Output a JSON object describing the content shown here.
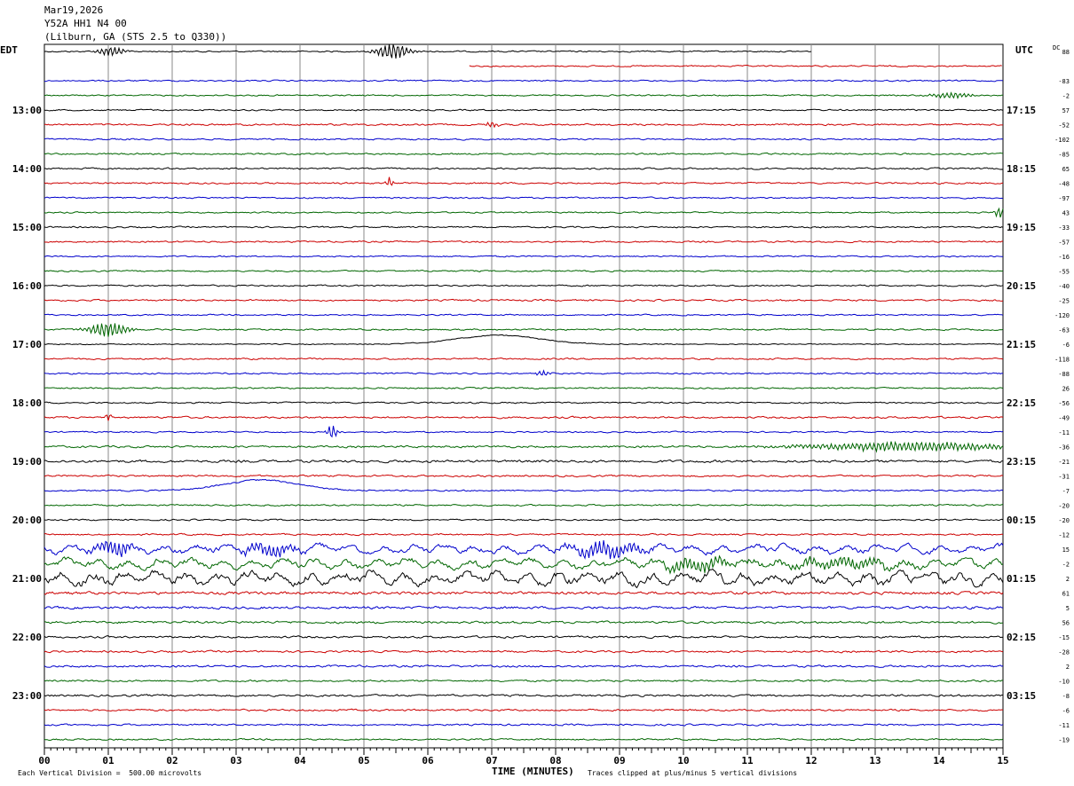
{
  "header": {
    "date": "Mar19,2026",
    "channel": "Y52A HH1 N4 00",
    "location": "(Lilburn, GA (STS 2.5 to Q330))"
  },
  "left_timezone": "EDT",
  "right_timezone": "UTC",
  "dc_label": "DC",
  "footer": {
    "scale": "Each Vertical Division =  500.00 microvolts",
    "xlabel": "TIME (MINUTES)",
    "clip_note": "Traces clipped at plus/minus 5 vertical divisions"
  },
  "colors": {
    "trace_cycle": [
      "#000000",
      "#cc0000",
      "#0000cc",
      "#006600"
    ],
    "grid": "#888888"
  },
  "chart_data": {
    "type": "line",
    "xlabel": "TIME (MINUTES)",
    "xlim": [
      0,
      15
    ],
    "x_ticks": [
      "00",
      "01",
      "02",
      "03",
      "04",
      "05",
      "06",
      "07",
      "08",
      "09",
      "10",
      "11",
      "12",
      "13",
      "14",
      "15"
    ],
    "left_hour_labels": [
      {
        "row": 4,
        "label": "13:00"
      },
      {
        "row": 8,
        "label": "14:00"
      },
      {
        "row": 12,
        "label": "15:00"
      },
      {
        "row": 16,
        "label": "16:00"
      },
      {
        "row": 20,
        "label": "17:00"
      },
      {
        "row": 24,
        "label": "18:00"
      },
      {
        "row": 28,
        "label": "19:00"
      },
      {
        "row": 32,
        "label": "20:00"
      },
      {
        "row": 36,
        "label": "21:00"
      },
      {
        "row": 40,
        "label": "22:00"
      },
      {
        "row": 44,
        "label": "23:00"
      }
    ],
    "right_hour_labels": [
      {
        "row": 4,
        "label": "17:15"
      },
      {
        "row": 8,
        "label": "18:15"
      },
      {
        "row": 12,
        "label": "19:15"
      },
      {
        "row": 16,
        "label": "20:15"
      },
      {
        "row": 20,
        "label": "21:15"
      },
      {
        "row": 24,
        "label": "22:15"
      },
      {
        "row": 28,
        "label": "23:15"
      },
      {
        "row": 32,
        "label": "00:15"
      },
      {
        "row": 36,
        "label": "01:15"
      },
      {
        "row": 40,
        "label": "02:15"
      },
      {
        "row": 44,
        "label": "03:15"
      }
    ],
    "dc_offsets": [
      "88",
      "",
      "-83",
      "-2",
      "57",
      "-52",
      "-102",
      "-85",
      "65",
      "-48",
      "-97",
      "43",
      "-33",
      "-57",
      "-16",
      "-55",
      "-40",
      "-25",
      "-120",
      "-63",
      "-6",
      "-118",
      "-88",
      "26",
      "-56",
      "-49",
      "-11",
      "-36",
      "-21",
      "-31",
      "-7",
      "-20",
      "-20",
      "-12",
      "15",
      "-2",
      "2",
      "61",
      "5",
      "56",
      "-15",
      "-28",
      "2",
      "-10",
      "-8",
      "-6",
      "-11",
      "-19"
    ],
    "traces": [
      {
        "start": 0,
        "end": 12,
        "amp": 1.2,
        "events": [
          {
            "x": 1.05,
            "a": 5,
            "w": 0.2
          },
          {
            "x": 5.45,
            "a": 9,
            "w": 0.25
          }
        ]
      },
      {
        "start": 6.65,
        "end": 15,
        "amp": 1.2,
        "events": []
      },
      {
        "amp": 1.2,
        "events": []
      },
      {
        "amp": 1.2,
        "events": [
          {
            "x": 14.2,
            "a": 3,
            "w": 0.3
          }
        ]
      },
      {
        "amp": 1.3,
        "events": []
      },
      {
        "amp": 1.5,
        "events": [
          {
            "x": 7.0,
            "a": 3,
            "w": 0.1
          }
        ]
      },
      {
        "amp": 1.3,
        "events": []
      },
      {
        "amp": 1.4,
        "events": []
      },
      {
        "amp": 1.4,
        "events": []
      },
      {
        "amp": 1.4,
        "events": [
          {
            "x": 5.4,
            "a": 6,
            "w": 0.05
          }
        ]
      },
      {
        "amp": 1.3,
        "events": []
      },
      {
        "amp": 1.2,
        "events": [
          {
            "x": 14.95,
            "a": 6,
            "w": 0.08
          }
        ]
      },
      {
        "amp": 1.3,
        "events": []
      },
      {
        "amp": 1.4,
        "events": []
      },
      {
        "amp": 1.2,
        "events": []
      },
      {
        "amp": 1.3,
        "events": []
      },
      {
        "amp": 1.3,
        "events": []
      },
      {
        "amp": 1.5,
        "events": []
      },
      {
        "amp": 1.2,
        "events": []
      },
      {
        "amp": 1.3,
        "events": [
          {
            "x": 1.0,
            "a": 8,
            "w": 0.3
          }
        ]
      },
      {
        "amp": 0.9,
        "events": [],
        "swell": {
          "x": 7.1,
          "h": 10,
          "w": 1.1
        }
      },
      {
        "amp": 1.4,
        "events": []
      },
      {
        "amp": 1.3,
        "events": [
          {
            "x": 7.8,
            "a": 3,
            "w": 0.1
          }
        ]
      },
      {
        "amp": 1.3,
        "events": []
      },
      {
        "amp": 1.3,
        "events": []
      },
      {
        "amp": 1.6,
        "events": [
          {
            "x": 1.0,
            "a": 4,
            "w": 0.05
          }
        ]
      },
      {
        "amp": 1.2,
        "events": [
          {
            "x": 4.5,
            "a": 8,
            "w": 0.08
          }
        ]
      },
      {
        "amp": 1.8,
        "events": [
          {
            "x": 13.5,
            "a": 5,
            "w": 1.5
          }
        ]
      },
      {
        "amp": 2.2,
        "events": []
      },
      {
        "amp": 1.6,
        "events": []
      },
      {
        "amp": 1.3,
        "events": [],
        "swell": {
          "x": 3.4,
          "h": 12,
          "w": 1.0
        }
      },
      {
        "amp": 1.4,
        "events": []
      },
      {
        "amp": 1.3,
        "events": []
      },
      {
        "amp": 1.4,
        "events": []
      },
      {
        "amp": 4.0,
        "events": [
          {
            "x": 1.1,
            "a": 8,
            "w": 0.3
          },
          {
            "x": 3.5,
            "a": 6,
            "w": 0.4
          },
          {
            "x": 8.8,
            "a": 8,
            "w": 0.5
          }
        ]
      },
      {
        "amp": 4.5,
        "events": [
          {
            "x": 10.2,
            "a": 6,
            "w": 0.6
          },
          {
            "x": 12.5,
            "a": 5,
            "w": 0.8
          }
        ]
      },
      {
        "amp": 6.0,
        "events": []
      },
      {
        "amp": 2.5,
        "events": []
      },
      {
        "amp": 2.2,
        "events": []
      },
      {
        "amp": 2.0,
        "events": []
      },
      {
        "amp": 1.8,
        "events": []
      },
      {
        "amp": 1.7,
        "events": []
      },
      {
        "amp": 1.8,
        "events": []
      },
      {
        "amp": 1.6,
        "events": []
      },
      {
        "amp": 1.8,
        "events": []
      },
      {
        "amp": 1.6,
        "events": []
      },
      {
        "amp": 1.5,
        "events": []
      },
      {
        "amp": 1.4,
        "events": []
      }
    ]
  }
}
